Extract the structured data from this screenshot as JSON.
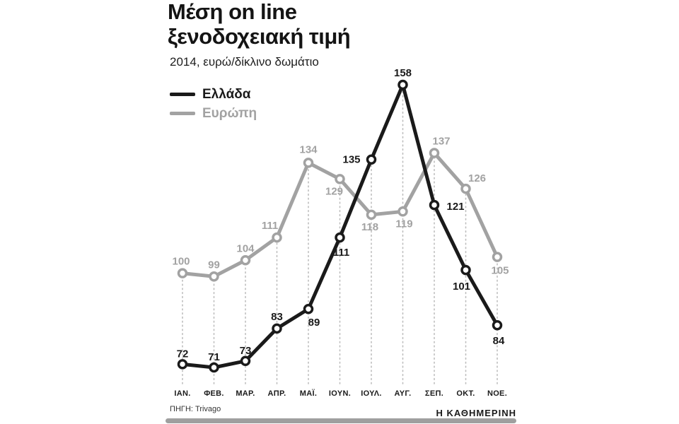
{
  "title": {
    "line1": "Μέση on line",
    "line2": "ξενοδοχειακή τιμή"
  },
  "subtitle": "2014, ευρώ/δίκλινο δωμάτιο",
  "legend": [
    {
      "label": "Ελλάδα",
      "color": "#1a1a1a"
    },
    {
      "label": "Ευρώπη",
      "color": "#a2a2a2"
    }
  ],
  "source": "ΠΗΓΗ: Trivago",
  "footer_brand": "Η ΚΑΘΗΜΕΡΙΝΗ",
  "chart_data": {
    "type": "line",
    "title": "Μέση on line ξενοδοχειακή τιμή",
    "subtitle": "2014, ευρώ/δίκλινο δωμάτιο",
    "unit": "ευρώ/δίκλινο δωμάτιο",
    "categories": [
      "ΙΑΝ.",
      "ΦΕΒ.",
      "ΜΑΡ.",
      "ΑΠΡ.",
      "ΜΑΪ.",
      "ΙΟΥΝ.",
      "ΙΟΥΛ.",
      "ΑΥΓ.",
      "ΣΕΠ.",
      "ΟΚΤ.",
      "ΝΟΕ."
    ],
    "series": [
      {
        "name": "Ελλάδα",
        "color": "#1a1a1a",
        "values": [
          72,
          71,
          73,
          83,
          89,
          111,
          135,
          158,
          121,
          101,
          84
        ]
      },
      {
        "name": "Ευρώπη",
        "color": "#a2a2a2",
        "values": [
          100,
          99,
          104,
          111,
          134,
          129,
          118,
          119,
          137,
          126,
          105
        ]
      }
    ],
    "ylim": [
      65,
      165
    ],
    "grid": "dotted vertical guides from baseline to points",
    "legend_position": "top-left",
    "value_labels": true
  }
}
